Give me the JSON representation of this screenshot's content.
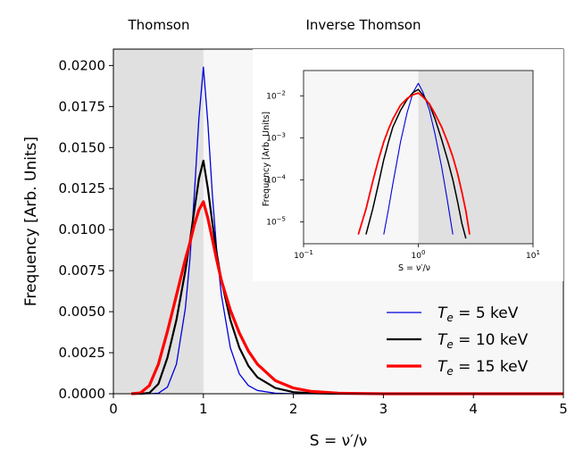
{
  "chart_data": [
    {
      "type": "line",
      "title": "",
      "xlabel": "S = ν′/ν",
      "ylabel": "Frequency [Arb. Units]",
      "xlim": [
        0,
        5
      ],
      "ylim": [
        0,
        0.021
      ],
      "x_ticks": [
        "0",
        "1",
        "2",
        "3",
        "4",
        "5"
      ],
      "y_ticks": [
        "0.0000",
        "0.0025",
        "0.0050",
        "0.0075",
        "0.0100",
        "0.0125",
        "0.0150",
        "0.0175",
        "0.0200"
      ],
      "grid": false,
      "legend_position": "bottom-right",
      "region_labels": [
        "Thomson",
        "Inverse Thomson"
      ],
      "shaded_region_x": [
        0,
        1
      ],
      "x": [
        0.2,
        0.3,
        0.4,
        0.5,
        0.6,
        0.7,
        0.8,
        0.85,
        0.9,
        0.95,
        1.0,
        1.05,
        1.1,
        1.15,
        1.2,
        1.3,
        1.4,
        1.5,
        1.6,
        1.8,
        2.0,
        2.2,
        2.5,
        3.0,
        4.0,
        5.0
      ],
      "series": [
        {
          "name": "T_e = 5 keV",
          "color": "#0000dd",
          "values": [
            0.0,
            0.0,
            0.0,
            3e-05,
            0.0004,
            0.0018,
            0.0052,
            0.0082,
            0.0122,
            0.0168,
            0.0199,
            0.0165,
            0.0121,
            0.0086,
            0.006,
            0.0028,
            0.0012,
            0.0005,
            0.0002,
            3e-05,
            0.0,
            0.0,
            0.0,
            0.0,
            0.0,
            0.0
          ]
        },
        {
          "name": "T_e = 10 keV",
          "color": "#000000",
          "values": [
            0.0,
            0.0,
            5e-05,
            0.0006,
            0.0022,
            0.0045,
            0.0075,
            0.0093,
            0.0112,
            0.0131,
            0.0142,
            0.0125,
            0.0104,
            0.0085,
            0.0069,
            0.0045,
            0.0028,
            0.0017,
            0.001,
            0.00035,
            0.0001,
            3e-05,
            0.0,
            0.0,
            0.0,
            0.0
          ]
        },
        {
          "name": "T_e = 15 keV",
          "color": "#ff0000",
          "values": [
            0.0,
            5e-05,
            0.0005,
            0.0018,
            0.0038,
            0.006,
            0.0082,
            0.0092,
            0.0103,
            0.0112,
            0.0117,
            0.0107,
            0.0094,
            0.0081,
            0.0069,
            0.0051,
            0.0037,
            0.0026,
            0.0018,
            0.0008,
            0.00035,
            0.00014,
            3e-05,
            0.0,
            0.0,
            0.0
          ]
        }
      ]
    },
    {
      "type": "line",
      "xlabel": "S = ν′/ν",
      "ylabel": "Frequency [Arb. Units]",
      "x_scale": "log",
      "y_scale": "log",
      "xlim": [
        0.1,
        10
      ],
      "ylim": [
        3e-06,
        0.04
      ],
      "x_ticks": [
        {
          "base": "10",
          "exp": "−1"
        },
        {
          "base": "10",
          "exp": "0"
        },
        {
          "base": "10",
          "exp": "1"
        }
      ],
      "y_ticks": [
        {
          "base": "10",
          "exp": "−5"
        },
        {
          "base": "10",
          "exp": "−4"
        },
        {
          "base": "10",
          "exp": "−3"
        },
        {
          "base": "10",
          "exp": "−2"
        }
      ],
      "shaded_region_x": [
        1,
        10
      ],
      "x": [
        0.3,
        0.35,
        0.4,
        0.45,
        0.5,
        0.55,
        0.6,
        0.7,
        0.8,
        0.9,
        1.0,
        1.1,
        1.25,
        1.4,
        1.6,
        1.8,
        2.0,
        2.2,
        2.4,
        2.6,
        2.8
      ],
      "series": [
        {
          "name": "T_e = 5 keV",
          "color": "#0000dd",
          "values": [
            null,
            null,
            null,
            null,
            5e-06,
            2e-05,
            8e-05,
            0.0008,
            0.004,
            0.012,
            0.0199,
            0.0121,
            0.0045,
            0.0012,
            0.0002,
            3e-05,
            5e-06,
            null,
            null,
            null,
            null
          ]
        },
        {
          "name": "T_e = 10 keV",
          "color": "#000000",
          "values": [
            null,
            5e-06,
            2e-05,
            8e-05,
            0.0003,
            0.0008,
            0.0018,
            0.0045,
            0.0082,
            0.012,
            0.0142,
            0.0104,
            0.0061,
            0.0028,
            0.0009,
            0.0003,
            0.0001,
            3e-05,
            9e-06,
            4e-06,
            null
          ]
        },
        {
          "name": "T_e = 15 keV",
          "color": "#ff0000",
          "values": [
            5e-06,
            2e-05,
            9e-05,
            0.0003,
            0.0008,
            0.0016,
            0.0028,
            0.006,
            0.0087,
            0.0106,
            0.0117,
            0.0094,
            0.0064,
            0.0037,
            0.0018,
            0.0008,
            0.00035,
            0.00014,
            5e-05,
            1.8e-05,
            5e-06
          ]
        }
      ]
    }
  ],
  "legend": {
    "entries": [
      {
        "sym": "T",
        "sub": "e",
        "text": " = 5 keV"
      },
      {
        "sym": "T",
        "sub": "e",
        "text": " = 10 keV"
      },
      {
        "sym": "T",
        "sub": "e",
        "text": " = 15 keV"
      }
    ]
  }
}
